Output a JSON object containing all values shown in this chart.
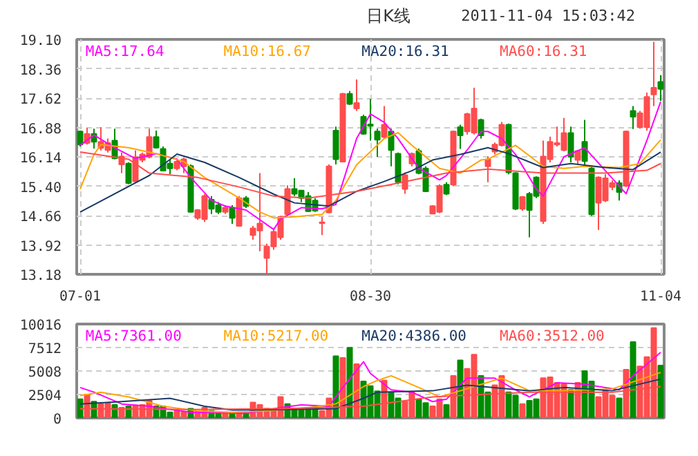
{
  "chart_data": [
    {
      "type": "candlestick",
      "title": "日K线",
      "subtitle": "2011-11-04 15:03:42",
      "categories": [
        "07-01",
        null,
        null,
        null,
        null,
        null,
        null,
        null,
        null,
        null,
        null,
        null,
        null,
        null,
        null,
        null,
        null,
        null,
        null,
        null,
        null,
        null,
        null,
        null,
        null,
        null,
        null,
        null,
        null,
        null,
        null,
        null,
        null,
        null,
        null,
        null,
        null,
        null,
        null,
        null,
        null,
        null,
        "08-30",
        null,
        null,
        null,
        null,
        null,
        null,
        null,
        null,
        null,
        null,
        null,
        null,
        null,
        null,
        null,
        null,
        null,
        null,
        null,
        null,
        null,
        null,
        null,
        null,
        null,
        null,
        null,
        null,
        null,
        null,
        null,
        null,
        null,
        null,
        null,
        null,
        null,
        null,
        null,
        null,
        null,
        "11-04"
      ],
      "ohlc": [
        [
          16.78,
          16.8,
          16.4,
          16.45
        ],
        [
          16.49,
          16.87,
          16.45,
          16.72
        ],
        [
          16.72,
          16.85,
          16.35,
          16.52
        ],
        [
          16.36,
          16.89,
          16.3,
          16.52
        ],
        [
          16.31,
          16.6,
          16.25,
          16.49
        ],
        [
          16.55,
          16.85,
          16.08,
          16.1
        ],
        [
          15.95,
          16.25,
          15.73,
          16.15
        ],
        [
          15.97,
          16.0,
          15.45,
          15.48
        ],
        [
          15.52,
          16.3,
          15.5,
          16.13
        ],
        [
          16.06,
          16.25,
          16.0,
          16.2
        ],
        [
          16.14,
          16.85,
          16.1,
          16.64
        ],
        [
          16.64,
          16.8,
          16.35,
          16.37
        ],
        [
          16.34,
          16.4,
          15.78,
          15.79
        ],
        [
          15.97,
          16.08,
          15.7,
          15.85
        ],
        [
          15.85,
          16.1,
          15.8,
          16.02
        ],
        [
          15.9,
          16.12,
          15.73,
          16.08
        ],
        [
          15.91,
          15.95,
          14.74,
          14.75
        ],
        [
          14.6,
          14.82,
          14.55,
          14.8
        ],
        [
          14.57,
          15.2,
          14.5,
          15.15
        ],
        [
          15.06,
          15.15,
          14.7,
          14.83
        ],
        [
          14.92,
          15.0,
          14.7,
          14.75
        ],
        [
          14.75,
          14.92,
          14.7,
          14.86
        ],
        [
          14.86,
          14.92,
          14.45,
          14.6
        ],
        [
          14.4,
          15.15,
          14.38,
          15.1
        ],
        [
          15.1,
          15.15,
          14.85,
          14.9
        ],
        [
          14.17,
          14.4,
          14.05,
          14.34
        ],
        [
          14.28,
          15.73,
          13.76,
          14.46
        ],
        [
          13.59,
          13.95,
          13.18,
          13.88
        ],
        [
          13.88,
          14.35,
          13.8,
          14.25
        ],
        [
          14.11,
          14.65,
          14.05,
          14.63
        ],
        [
          14.69,
          15.42,
          14.65,
          15.33
        ],
        [
          15.33,
          15.6,
          15.15,
          15.21
        ],
        [
          15.29,
          15.3,
          15.0,
          15.1
        ],
        [
          15.15,
          15.25,
          14.75,
          14.77
        ],
        [
          15.04,
          15.1,
          14.75,
          14.78
        ],
        [
          14.47,
          14.63,
          14.17,
          14.49
        ],
        [
          14.74,
          15.95,
          14.72,
          15.9
        ],
        [
          16.8,
          16.9,
          15.95,
          16.08
        ],
        [
          16.02,
          17.75,
          16.0,
          17.73
        ],
        [
          17.73,
          17.8,
          17.45,
          17.47
        ],
        [
          17.36,
          18.09,
          17.3,
          17.5
        ],
        [
          17.15,
          17.2,
          16.7,
          16.72
        ],
        [
          16.96,
          17.6,
          16.55,
          16.92
        ],
        [
          16.78,
          16.85,
          16.14,
          16.57
        ],
        [
          16.64,
          17.42,
          16.6,
          16.95
        ],
        [
          16.78,
          16.85,
          15.9,
          16.31
        ],
        [
          16.22,
          16.25,
          15.45,
          15.5
        ],
        [
          15.33,
          15.75,
          15.21,
          15.68
        ],
        [
          15.97,
          16.25,
          15.9,
          16.22
        ],
        [
          16.29,
          16.35,
          15.7,
          15.73
        ],
        [
          15.85,
          15.9,
          15.25,
          15.27
        ],
        [
          14.71,
          14.92,
          14.7,
          14.9
        ],
        [
          14.75,
          15.45,
          14.72,
          15.41
        ],
        [
          15.44,
          15.5,
          15.18,
          15.21
        ],
        [
          15.44,
          16.8,
          15.4,
          16.78
        ],
        [
          16.89,
          16.95,
          16.34,
          16.68
        ],
        [
          16.78,
          17.25,
          16.7,
          17.22
        ],
        [
          16.75,
          17.88,
          16.7,
          17.36
        ],
        [
          17.07,
          17.1,
          16.6,
          16.68
        ],
        [
          15.9,
          16.15,
          15.5,
          16.08
        ],
        [
          16.27,
          16.5,
          16.2,
          16.45
        ],
        [
          16.43,
          17.02,
          16.4,
          16.95
        ],
        [
          16.95,
          16.98,
          15.7,
          15.75
        ],
        [
          15.73,
          15.75,
          14.8,
          14.83
        ],
        [
          14.83,
          15.15,
          14.78,
          15.13
        ],
        [
          15.21,
          15.25,
          14.11,
          14.8
        ],
        [
          15.62,
          15.65,
          15.1,
          15.15
        ],
        [
          14.52,
          16.55,
          14.45,
          16.15
        ],
        [
          16.08,
          16.65,
          16.0,
          16.52
        ],
        [
          16.45,
          16.9,
          16.4,
          16.49
        ],
        [
          16.31,
          17.12,
          16.28,
          16.74
        ],
        [
          16.74,
          16.9,
          16.0,
          16.14
        ],
        [
          16.06,
          16.32,
          15.95,
          16.29
        ],
        [
          16.52,
          17.07,
          15.95,
          16.03
        ],
        [
          15.85,
          15.9,
          14.65,
          14.69
        ],
        [
          14.98,
          15.65,
          14.3,
          15.62
        ],
        [
          15.04,
          15.7,
          15.0,
          15.6
        ],
        [
          15.38,
          15.55,
          15.3,
          15.48
        ],
        [
          15.48,
          15.55,
          15.04,
          15.25
        ],
        [
          15.41,
          16.8,
          15.38,
          16.78
        ],
        [
          17.3,
          17.42,
          16.84,
          17.15
        ],
        [
          16.89,
          17.3,
          16.85,
          17.24
        ],
        [
          16.89,
          17.76,
          16.8,
          17.65
        ],
        [
          17.71,
          19.04,
          17.42,
          17.88
        ],
        [
          18.03,
          18.2,
          17.55,
          17.85
        ]
      ],
      "colors": [
        "#008c00",
        "#ff4d4d",
        "#008c00",
        "#ff4d4d",
        "#ff4d4d",
        "#008c00",
        "#ff4d4d",
        "#008c00",
        "#ff4d4d",
        "#ff4d4d",
        "#ff4d4d",
        "#008c00",
        "#008c00",
        "#008c00",
        "#ff4d4d",
        "#ff4d4d",
        "#008c00",
        "#ff4d4d",
        "#ff4d4d",
        "#008c00",
        "#008c00",
        "#ff4d4d",
        "#008c00",
        "#ff4d4d",
        "#008c00",
        "#ff4d4d",
        "#ff4d4d",
        "#ff4d4d",
        "#ff4d4d",
        "#ff4d4d",
        "#ff4d4d",
        "#008c00",
        "#008c00",
        "#008c00",
        "#008c00",
        "#ff4d4d",
        "#ff4d4d",
        "#008c00",
        "#ff4d4d",
        "#008c00",
        "#ff4d4d",
        "#008c00",
        "#008c00",
        "#008c00",
        "#ff4d4d",
        "#008c00",
        "#008c00",
        "#ff4d4d",
        "#ff4d4d",
        "#008c00",
        "#008c00",
        "#ff4d4d",
        "#ff4d4d",
        "#008c00",
        "#ff4d4d",
        "#008c00",
        "#ff4d4d",
        "#ff4d4d",
        "#008c00",
        "#ff4d4d",
        "#ff4d4d",
        "#ff4d4d",
        "#008c00",
        "#008c00",
        "#ff4d4d",
        "#008c00",
        "#008c00",
        "#ff4d4d",
        "#ff4d4d",
        "#ff4d4d",
        "#ff4d4d",
        "#008c00",
        "#ff4d4d",
        "#008c00",
        "#008c00",
        "#ff4d4d",
        "#ff4d4d",
        "#ff4d4d",
        "#008c00",
        "#ff4d4d",
        "#008c00",
        "#ff4d4d",
        "#ff4d4d",
        "#ff4d4d",
        "#008c00"
      ],
      "series": [
        {
          "type": "line",
          "name": "MA5:17.64",
          "color": "#ff00ff",
          "values": [
            16.43,
            null,
            16.69,
            null,
            null,
            16.37,
            null,
            null,
            16.1,
            null,
            null,
            16.22,
            null,
            null,
            16.08,
            null,
            15.62,
            null,
            null,
            15.04,
            null,
            14.9,
            null,
            null,
            14.8,
            null,
            null,
            null,
            14.31,
            14.57,
            null,
            null,
            14.86,
            null,
            null,
            14.83,
            null,
            14.94,
            null,
            null,
            16.6,
            null,
            17.22,
            null,
            17.01,
            null,
            16.6,
            null,
            null,
            15.85,
            null,
            null,
            15.56,
            15.67,
            null,
            null,
            16.31,
            null,
            16.78,
            16.78,
            null,
            16.6,
            null,
            16.2,
            null,
            null,
            15.33,
            15.15,
            null,
            null,
            16.14,
            null,
            null,
            16.37,
            null,
            null,
            15.79,
            null,
            null,
            15.21,
            null,
            null,
            16.55,
            null,
            17.53
          ]
        },
        {
          "type": "line",
          "name": "MA10:16.67",
          "color": "#ffa500",
          "values": [
            15.33,
            null,
            16.2,
            16.45,
            null,
            null,
            null,
            16.37,
            null,
            null,
            null,
            16.22,
            null,
            null,
            null,
            16.02,
            null,
            null,
            15.62,
            null,
            null,
            null,
            null,
            15.1,
            null,
            null,
            14.75,
            null,
            14.6,
            null,
            null,
            14.63,
            null,
            null,
            null,
            14.69,
            null,
            15.04,
            null,
            null,
            15.94,
            null,
            null,
            null,
            16.6,
            null,
            16.75,
            null,
            16.43,
            null,
            null,
            null,
            15.85,
            null,
            null,
            15.73,
            null,
            null,
            16.06,
            16.08,
            null,
            null,
            null,
            16.43,
            null,
            null,
            null,
            15.9,
            null,
            null,
            15.85,
            null,
            null,
            15.9,
            null,
            null,
            null,
            null,
            15.87,
            null,
            null,
            15.97,
            null,
            null,
            16.57
          ]
        },
        {
          "type": "line",
          "name": "MA20:16.31",
          "color": "#1a3a66",
          "values": [
            14.75,
            null,
            null,
            null,
            null,
            null,
            null,
            null,
            null,
            null,
            15.67,
            null,
            null,
            null,
            16.21,
            null,
            null,
            null,
            16.0,
            null,
            null,
            null,
            null,
            15.62,
            null,
            null,
            null,
            null,
            15.2,
            null,
            null,
            14.98,
            null,
            null,
            null,
            null,
            14.9,
            null,
            null,
            null,
            15.27,
            null,
            null,
            null,
            15.52,
            null,
            null,
            null,
            15.79,
            null,
            null,
            16.06,
            null,
            null,
            null,
            16.2,
            null,
            null,
            null,
            16.37,
            null,
            null,
            16.22,
            null,
            null,
            null,
            null,
            15.87,
            null,
            null,
            null,
            15.97,
            null,
            null,
            null,
            null,
            15.87,
            null,
            null,
            null,
            15.82,
            null,
            null,
            null,
            16.26
          ]
        },
        {
          "type": "line",
          "name": "MA60:16.31",
          "color": "#ff4d4d",
          "values": [
            16.26,
            null,
            null,
            null,
            null,
            null,
            null,
            16.08,
            null,
            null,
            15.73,
            null,
            null,
            null,
            null,
            null,
            null,
            15.62,
            null,
            null,
            null,
            null,
            null,
            15.38,
            null,
            null,
            null,
            null,
            15.15,
            null,
            null,
            null,
            null,
            15.1,
            null,
            null,
            null,
            null,
            null,
            null,
            15.27,
            null,
            null,
            null,
            null,
            null,
            15.48,
            null,
            null,
            null,
            null,
            null,
            null,
            15.73,
            null,
            null,
            null,
            null,
            null,
            15.83,
            null,
            null,
            null,
            null,
            null,
            null,
            null,
            15.73,
            null,
            null,
            null,
            null,
            null,
            null,
            null,
            null,
            15.73,
            null,
            null,
            null,
            null,
            null,
            15.8,
            null,
            15.97
          ]
        }
      ],
      "ylim": [
        13.18,
        19.1
      ],
      "yticks": [
        {
          "value": 13.18,
          "label": "13.18"
        },
        {
          "value": 13.92,
          "label": "13.92"
        },
        {
          "value": 14.66,
          "label": "14.66"
        },
        {
          "value": 15.4,
          "label": "15.40"
        },
        {
          "value": 16.14,
          "label": "16.14"
        },
        {
          "value": 16.88,
          "label": "16.88"
        },
        {
          "value": 17.62,
          "label": "17.62"
        },
        {
          "value": 18.36,
          "label": "18.36"
        },
        {
          "value": 19.1,
          "label": "19.10"
        }
      ],
      "grid": true,
      "legend": "top"
    },
    {
      "type": "bar",
      "categories": [
        null,
        null,
        null,
        null,
        null,
        null,
        null,
        null,
        null,
        null,
        null,
        null,
        null,
        null,
        null,
        null,
        null,
        null,
        null,
        null,
        null,
        null,
        null,
        null,
        null,
        null,
        null,
        null,
        null,
        null,
        null,
        null,
        null,
        null,
        null,
        null,
        null,
        null,
        null,
        null,
        null,
        null,
        null,
        null,
        null,
        null,
        null,
        null,
        null,
        null,
        null,
        null,
        null,
        null,
        null,
        null,
        null,
        null,
        null,
        null,
        null,
        null,
        null,
        null,
        null,
        null,
        null,
        null,
        null,
        null,
        null,
        null,
        null,
        null,
        null,
        null,
        null,
        null,
        null,
        null,
        null,
        null,
        null,
        null,
        null
      ],
      "series": [
        {
          "type": "bar",
          "values": [
            2000,
            2500,
            1750,
            1500,
            1600,
            1400,
            1100,
            1250,
            1350,
            1400,
            1850,
            1250,
            1250,
            600,
            750,
            600,
            1000,
            750,
            1100,
            750,
            500,
            600,
            500,
            600,
            500,
            1650,
            1400,
            1000,
            900,
            2250,
            1500,
            1000,
            1000,
            1000,
            1000,
            750,
            2100,
            6600,
            6400,
            7500,
            5750,
            3900,
            3400,
            2850,
            4000,
            2750,
            2100,
            1750,
            2750,
            2000,
            1600,
            1250,
            2000,
            1400,
            4500,
            6150,
            5250,
            6750,
            4500,
            2750,
            3500,
            4500,
            2750,
            2400,
            1500,
            1850,
            2000,
            4250,
            4350,
            3750,
            3600,
            3000,
            3750,
            5000,
            3900,
            2250,
            2900,
            2400,
            2100,
            5150,
            8100,
            5500,
            6500,
            9600,
            5600
          ],
          "colors": [
            "#008c00",
            "#ff4d4d",
            "#008c00",
            "#ff4d4d",
            "#ff4d4d",
            "#008c00",
            "#ff4d4d",
            "#008c00",
            "#ff4d4d",
            "#ff4d4d",
            "#ff4d4d",
            "#008c00",
            "#008c00",
            "#008c00",
            "#ff4d4d",
            "#ff4d4d",
            "#008c00",
            "#ff4d4d",
            "#ff4d4d",
            "#008c00",
            "#008c00",
            "#ff4d4d",
            "#008c00",
            "#ff4d4d",
            "#008c00",
            "#ff4d4d",
            "#ff4d4d",
            "#ff4d4d",
            "#ff4d4d",
            "#ff4d4d",
            "#008c00",
            "#008c00",
            "#008c00",
            "#008c00",
            "#008c00",
            "#ff4d4d",
            "#ff4d4d",
            "#008c00",
            "#ff4d4d",
            "#008c00",
            "#ff4d4d",
            "#008c00",
            "#008c00",
            "#008c00",
            "#ff4d4d",
            "#008c00",
            "#008c00",
            "#ff4d4d",
            "#ff4d4d",
            "#008c00",
            "#008c00",
            "#ff4d4d",
            "#ff4d4d",
            "#008c00",
            "#ff4d4d",
            "#008c00",
            "#ff4d4d",
            "#ff4d4d",
            "#008c00",
            "#008c00",
            "#ff4d4d",
            "#ff4d4d",
            "#008c00",
            "#008c00",
            "#ff4d4d",
            "#008c00",
            "#008c00",
            "#ff4d4d",
            "#ff4d4d",
            "#ff4d4d",
            "#ff4d4d",
            "#008c00",
            "#ff4d4d",
            "#008c00",
            "#008c00",
            "#ff4d4d",
            "#ff4d4d",
            "#ff4d4d",
            "#008c00",
            "#ff4d4d",
            "#008c00",
            "#ff4d4d",
            "#ff4d4d",
            "#ff4d4d",
            "#008c00"
          ]
        },
        {
          "type": "line",
          "name": "MA5:7361.00",
          "color": "#ff00ff",
          "values": [
            3250,
            null,
            2750,
            null,
            null,
            null,
            1500,
            null,
            null,
            null,
            1250,
            null,
            null,
            null,
            null,
            null,
            600,
            null,
            null,
            null,
            null,
            null,
            null,
            null,
            500,
            null,
            null,
            null,
            null,
            1100,
            null,
            null,
            1400,
            null,
            null,
            null,
            1250,
            null,
            3250,
            null,
            null,
            6000,
            4750,
            null,
            null,
            3000,
            null,
            null,
            2750,
            null,
            null,
            1750,
            null,
            2000,
            null,
            null,
            4250,
            null,
            null,
            null,
            4250,
            null,
            null,
            3000,
            null,
            2250,
            null,
            null,
            null,
            3750,
            null,
            null,
            null,
            3600,
            null,
            null,
            null,
            null,
            3000,
            null,
            4500,
            null,
            null,
            null,
            7000
          ]
        },
        {
          "type": "line",
          "name": "MA10:5217.00",
          "color": "#ffa500",
          "values": [
            2400,
            null,
            null,
            2750,
            null,
            null,
            null,
            2250,
            null,
            null,
            null,
            null,
            1250,
            null,
            null,
            null,
            null,
            750,
            null,
            null,
            null,
            null,
            600,
            null,
            null,
            null,
            null,
            750,
            null,
            null,
            null,
            null,
            null,
            1100,
            null,
            null,
            null,
            1500,
            null,
            null,
            null,
            3350,
            null,
            4000,
            null,
            4500,
            null,
            null,
            null,
            3250,
            null,
            null,
            2250,
            null,
            null,
            2900,
            null,
            null,
            null,
            null,
            null,
            4250,
            null,
            null,
            null,
            2900,
            null,
            null,
            null,
            null,
            2900,
            null,
            null,
            null,
            null,
            null,
            null,
            3100,
            null,
            null,
            null,
            null,
            null,
            null,
            4850
          ]
        },
        {
          "type": "line",
          "name": "MA20:4386.00",
          "color": "#1a3a66",
          "values": [
            1500,
            null,
            null,
            null,
            null,
            null,
            1750,
            null,
            null,
            null,
            null,
            null,
            null,
            2100,
            null,
            null,
            null,
            null,
            1250,
            null,
            null,
            null,
            850,
            null,
            null,
            null,
            null,
            null,
            null,
            null,
            900,
            null,
            null,
            null,
            null,
            null,
            null,
            1000,
            null,
            null,
            null,
            2100,
            null,
            2750,
            null,
            null,
            null,
            null,
            null,
            null,
            null,
            2900,
            null,
            null,
            null,
            null,
            3500,
            null,
            null,
            null,
            null,
            null,
            null,
            null,
            null,
            2900,
            null,
            null,
            null,
            null,
            3250,
            null,
            null,
            null,
            null,
            null,
            null,
            2900,
            null,
            null,
            null,
            null,
            null,
            null,
            4150
          ]
        },
        {
          "type": "line",
          "name": "MA60:3512.00",
          "color": "#ff4d4d",
          "values": [
            1000,
            null,
            null,
            null,
            null,
            null,
            null,
            null,
            null,
            null,
            null,
            null,
            null,
            null,
            null,
            null,
            900,
            null,
            null,
            null,
            null,
            null,
            null,
            null,
            null,
            null,
            null,
            null,
            null,
            1000,
            null,
            null,
            null,
            null,
            null,
            null,
            null,
            null,
            null,
            null,
            null,
            1250,
            null,
            null,
            null,
            null,
            null,
            null,
            null,
            null,
            null,
            2250,
            null,
            null,
            null,
            null,
            null,
            null,
            null,
            null,
            null,
            null,
            null,
            null,
            null,
            2750,
            null,
            null,
            null,
            null,
            null,
            null,
            null,
            null,
            null,
            null,
            null,
            2750,
            null,
            null,
            null,
            null,
            null,
            null,
            3350
          ]
        }
      ],
      "ylim": [
        0,
        10016
      ],
      "yticks": [
        0,
        2504,
        5008,
        7512,
        10016
      ],
      "grid": true,
      "legend": "top"
    }
  ]
}
